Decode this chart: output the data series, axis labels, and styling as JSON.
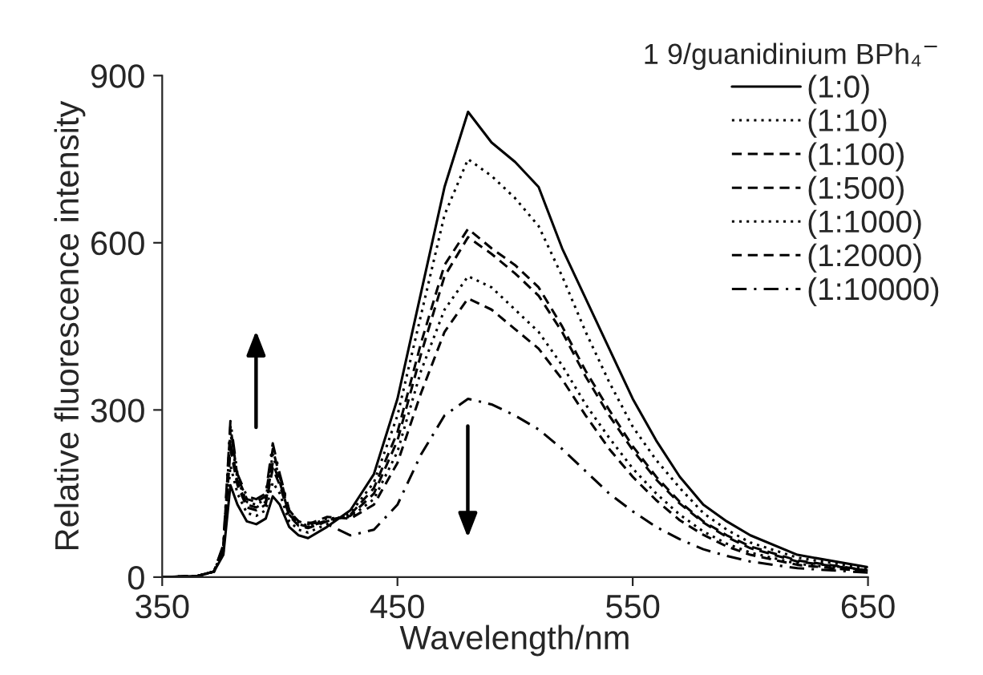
{
  "chart_data": {
    "type": "line",
    "xlabel": "Wavelength/nm",
    "ylabel": "Relative fluorescence intensity",
    "legend_title": "1 9/guanidinium BPh₄$^{−}$",
    "x": [
      350,
      365,
      372,
      376,
      379,
      382,
      386,
      390,
      394,
      397,
      400,
      404,
      408,
      412,
      420,
      430,
      440,
      450,
      460,
      470,
      480,
      490,
      500,
      510,
      520,
      530,
      540,
      550,
      560,
      570,
      580,
      590,
      600,
      620,
      650
    ],
    "series": [
      {
        "name": "(1:0)",
        "color": "#000000",
        "line_style": "solid",
        "values": [
          0,
          2,
          10,
          40,
          165,
          130,
          100,
          95,
          105,
          145,
          130,
          90,
          75,
          70,
          90,
          120,
          185,
          320,
          510,
          700,
          835,
          780,
          745,
          700,
          590,
          500,
          410,
          320,
          245,
          180,
          130,
          100,
          75,
          40,
          18
        ]
      },
      {
        "name": "(1:10)",
        "color": "#000000",
        "line_style": "dotted",
        "values": [
          0,
          2,
          10,
          45,
          200,
          150,
          115,
          110,
          120,
          170,
          150,
          100,
          85,
          80,
          95,
          115,
          170,
          290,
          470,
          650,
          750,
          720,
          680,
          630,
          540,
          440,
          350,
          270,
          210,
          160,
          115,
          85,
          62,
          35,
          15
        ]
      },
      {
        "name": "(1:100)",
        "color": "#000000",
        "line_style": "dashed",
        "values": [
          0,
          2,
          10,
          50,
          230,
          165,
          125,
          120,
          130,
          195,
          165,
          110,
          92,
          88,
          100,
          112,
          160,
          260,
          420,
          560,
          625,
          590,
          560,
          520,
          450,
          370,
          300,
          235,
          180,
          135,
          100,
          75,
          55,
          30,
          12
        ]
      },
      {
        "name": "(1:500)",
        "color": "#000000",
        "line_style": "dashed",
        "values": [
          0,
          2,
          10,
          50,
          245,
          170,
          130,
          125,
          135,
          205,
          170,
          112,
          95,
          90,
          102,
          110,
          150,
          245,
          400,
          540,
          610,
          580,
          545,
          505,
          440,
          360,
          290,
          228,
          175,
          132,
          98,
          72,
          52,
          28,
          12
        ]
      },
      {
        "name": "(1:1000)",
        "color": "#000000",
        "line_style": "dotted",
        "values": [
          0,
          2,
          10,
          52,
          260,
          175,
          135,
          130,
          140,
          220,
          175,
          115,
          98,
          92,
          105,
          108,
          140,
          225,
          370,
          480,
          540,
          520,
          480,
          440,
          380,
          310,
          250,
          195,
          150,
          112,
          82,
          60,
          44,
          24,
          10
        ]
      },
      {
        "name": "(1:2000)",
        "color": "#000000",
        "line_style": "dashed",
        "values": [
          0,
          2,
          10,
          55,
          270,
          180,
          140,
          135,
          145,
          230,
          180,
          118,
          100,
          95,
          108,
          105,
          130,
          205,
          330,
          440,
          500,
          480,
          445,
          410,
          355,
          290,
          230,
          180,
          138,
          102,
          76,
          55,
          40,
          22,
          10
        ]
      },
      {
        "name": "(1:10000)",
        "color": "#000000",
        "line_style": "dashdot",
        "values": [
          0,
          2,
          10,
          58,
          280,
          185,
          145,
          140,
          150,
          240,
          185,
          120,
          100,
          98,
          95,
          75,
          85,
          130,
          220,
          290,
          320,
          310,
          290,
          265,
          230,
          190,
          150,
          118,
          90,
          68,
          50,
          38,
          28,
          16,
          8
        ]
      }
    ],
    "xlim": [
      350,
      650
    ],
    "xticks": [
      350,
      450,
      550,
      650
    ],
    "ylim": [
      0,
      900
    ],
    "yticks": [
      0,
      300,
      600,
      900
    ],
    "grid": false,
    "legend": "top right"
  }
}
